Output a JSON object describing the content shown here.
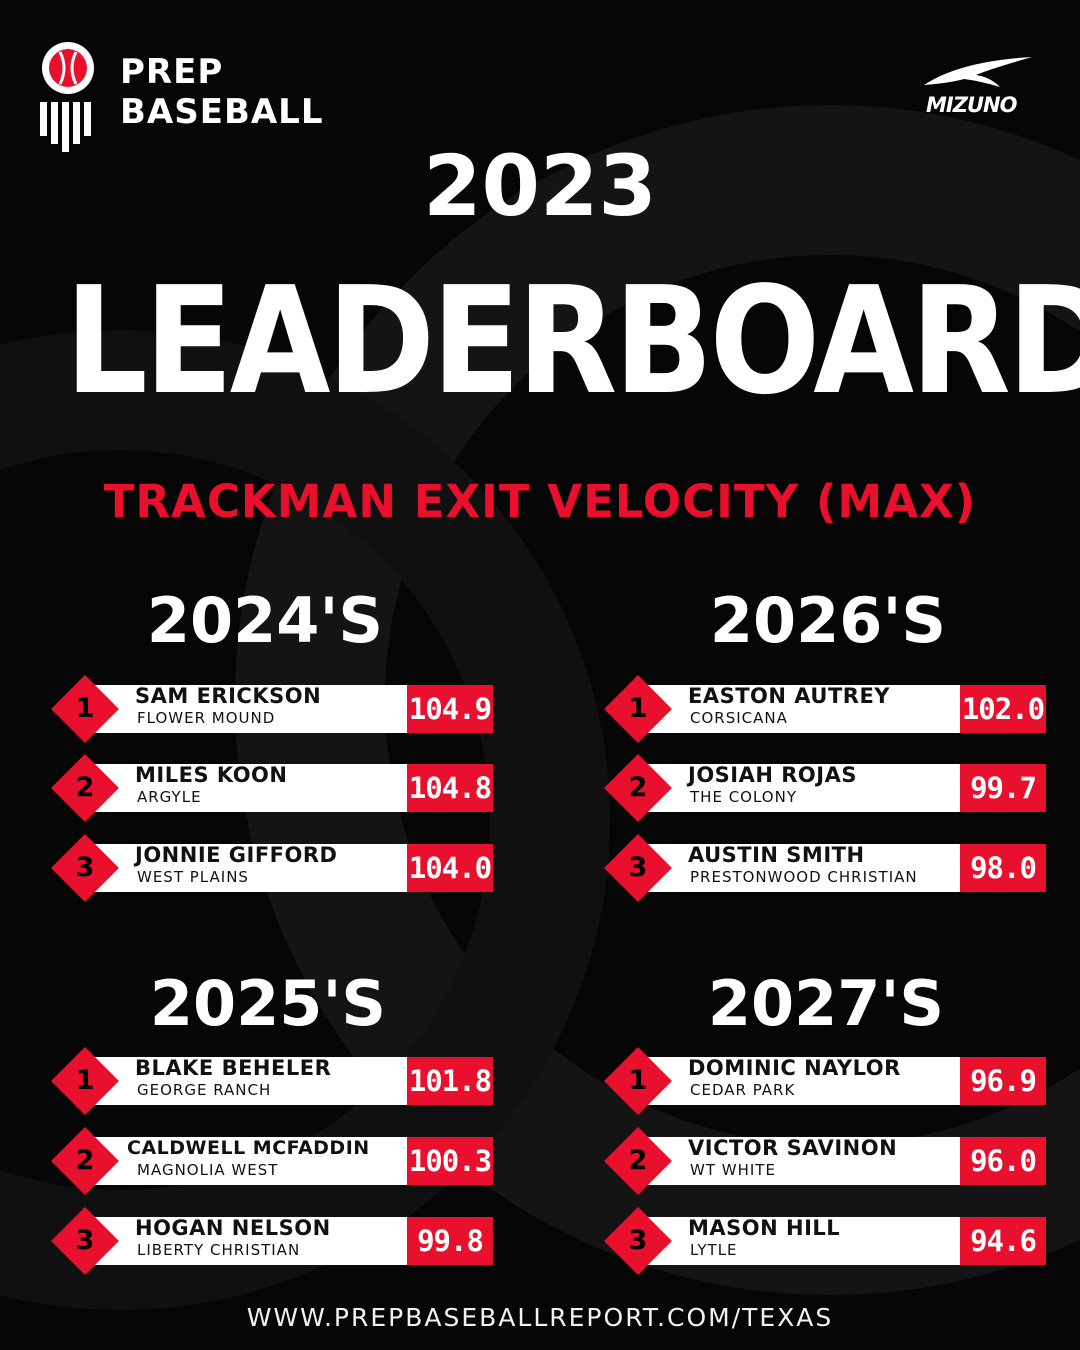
{
  "brand": {
    "line1": "PREP",
    "line2": "BASEBALL",
    "sponsor": "MIZUNO"
  },
  "header": {
    "year": "2023",
    "title": "LEADERBOARD",
    "metric": "TRACKMAN EXIT VELOCITY (MAX)"
  },
  "groups": [
    {
      "title": "2024'S",
      "entries": [
        {
          "rank": "1",
          "name": "SAM ERICKSON",
          "school": "FLOWER MOUND",
          "value": "104.9"
        },
        {
          "rank": "2",
          "name": "MILES KOON",
          "school": "ARGYLE",
          "value": "104.8"
        },
        {
          "rank": "3",
          "name": "JONNIE GIFFORD",
          "school": "WEST PLAINS",
          "value": "104.0"
        }
      ]
    },
    {
      "title": "2026'S",
      "entries": [
        {
          "rank": "1",
          "name": "EASTON AUTREY",
          "school": "CORSICANA",
          "value": "102.0"
        },
        {
          "rank": "2",
          "name": "JOSIAH ROJAS",
          "school": "THE COLONY",
          "value": "99.7"
        },
        {
          "rank": "3",
          "name": "AUSTIN SMITH",
          "school": "PRESTONWOOD CHRISTIAN",
          "value": "98.0"
        }
      ]
    },
    {
      "title": "2025'S",
      "entries": [
        {
          "rank": "1",
          "name": "BLAKE BEHELER",
          "school": "GEORGE RANCH",
          "value": "101.8"
        },
        {
          "rank": "2",
          "name": "CALDWELL MCFADDIN",
          "school": "MAGNOLIA WEST",
          "value": "100.3"
        },
        {
          "rank": "3",
          "name": "HOGAN NELSON",
          "school": "LIBERTY CHRISTIAN",
          "value": "99.8"
        }
      ]
    },
    {
      "title": "2027'S",
      "entries": [
        {
          "rank": "1",
          "name": "DOMINIC NAYLOR",
          "school": "CEDAR PARK",
          "value": "96.9"
        },
        {
          "rank": "2",
          "name": "VICTOR SAVINON",
          "school": "WT WHITE",
          "value": "96.0"
        },
        {
          "rank": "3",
          "name": "MASON HILL",
          "school": "LYTLE",
          "value": "94.6"
        }
      ]
    }
  ],
  "footer": {
    "url": "WWW.PREPBASEBALLREPORT.COM/TEXAS"
  },
  "colors": {
    "accent": "#e8102c",
    "background": "#060606",
    "text": "#ffffff"
  }
}
